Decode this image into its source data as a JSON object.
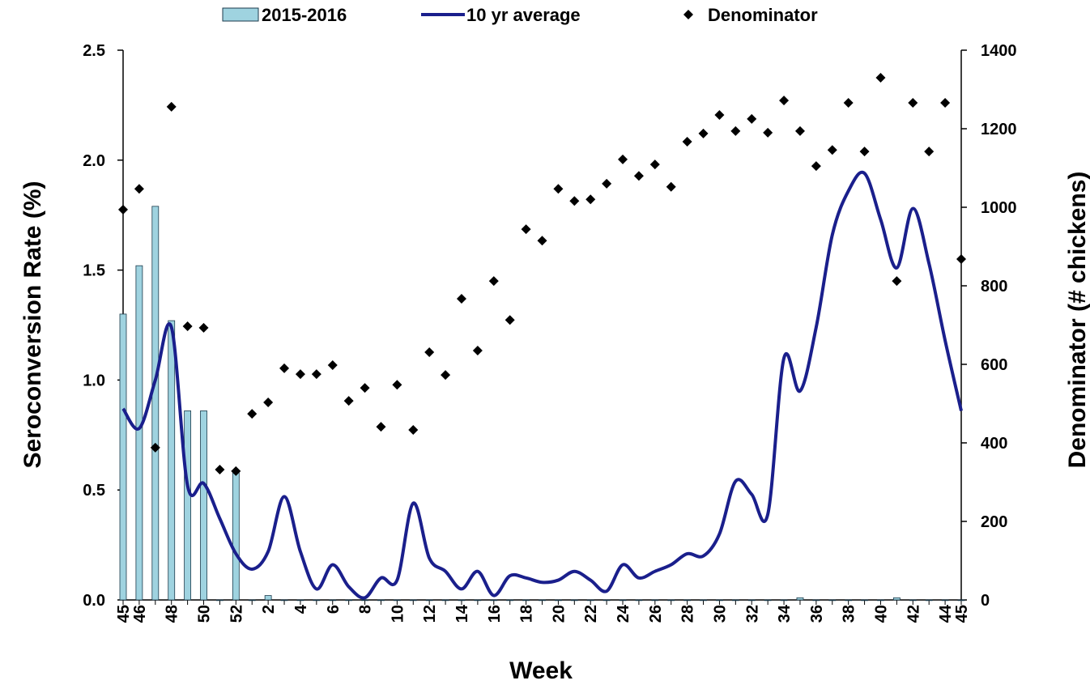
{
  "chart_data": {
    "type": "combo",
    "x_label": "Week",
    "y_label": "Seroconversion Rate (%)",
    "y2_label": "Denominator (# chickens)",
    "categories": [
      "45",
      "46",
      null,
      "48",
      null,
      "50",
      null,
      "52",
      null,
      "2",
      null,
      "4",
      null,
      "6",
      null,
      "8",
      null,
      "10",
      null,
      "12",
      null,
      "14",
      null,
      "16",
      null,
      "18",
      null,
      "20",
      null,
      "22",
      null,
      "24",
      null,
      "26",
      null,
      "28",
      null,
      "30",
      null,
      "32",
      null,
      "34",
      null,
      "36",
      null,
      "38",
      null,
      "40",
      null,
      "42",
      null,
      "44",
      "45"
    ],
    "series": [
      {
        "name": "2015-2016",
        "kind": "bar",
        "color": "#9fd3e0",
        "axis": "y",
        "values": [
          1.3,
          1.52,
          1.79,
          1.27,
          0.86,
          0.86,
          0,
          0.58,
          0,
          0.02,
          0,
          0,
          0,
          0,
          0,
          0,
          0,
          0,
          0,
          0,
          0,
          0,
          0,
          0,
          0,
          0,
          0,
          0,
          0,
          0,
          0,
          0,
          0,
          0,
          0,
          0,
          0,
          0,
          0,
          0,
          0,
          0,
          0.01,
          0,
          0,
          0,
          0,
          0,
          0.01,
          0,
          0,
          0,
          0
        ]
      },
      {
        "name": "10 yr average",
        "kind": "line",
        "color": "#1a1f8c",
        "axis": "y",
        "values": [
          0.87,
          0.78,
          1.0,
          1.24,
          0.52,
          0.53,
          0.37,
          0.21,
          0.14,
          0.22,
          0.47,
          0.22,
          0.05,
          0.16,
          0.06,
          0.01,
          0.1,
          0.09,
          0.44,
          0.19,
          0.13,
          0.05,
          0.13,
          0.02,
          0.11,
          0.1,
          0.08,
          0.09,
          0.13,
          0.09,
          0.04,
          0.16,
          0.1,
          0.13,
          0.16,
          0.21,
          0.2,
          0.3,
          0.54,
          0.48,
          0.39,
          1.1,
          0.95,
          1.24,
          1.66,
          1.86,
          1.94,
          1.73,
          1.51,
          1.78,
          1.53,
          1.18,
          0.86
        ]
      },
      {
        "name": "Denominator",
        "kind": "scatter",
        "color": "#000000",
        "axis": "y2",
        "values": [
          994,
          1047,
          388,
          1256,
          697,
          693,
          332,
          328,
          474,
          503,
          590,
          575,
          575,
          598,
          507,
          540,
          441,
          548,
          433,
          631,
          573,
          767,
          635,
          812,
          713,
          944,
          915,
          1047,
          1016,
          1020,
          1060,
          1122,
          1080,
          1109,
          1052,
          1167,
          1188,
          1235,
          1194,
          1225,
          1190,
          1272,
          1194,
          1105,
          1146,
          1266,
          1142,
          1330,
          812,
          1266,
          1142,
          1266,
          868
        ]
      }
    ],
    "ylim": [
      0,
      2.5
    ],
    "yticks": [
      {
        "value": 0,
        "label": "0.0"
      },
      {
        "value": 0.5,
        "label": "0.5"
      },
      {
        "value": 1,
        "label": "1.0"
      },
      {
        "value": 1.5,
        "label": "1.5"
      },
      {
        "value": 2,
        "label": "2.0"
      },
      {
        "value": 2.5,
        "label": "2.5"
      }
    ],
    "y2lim": [
      0,
      1400
    ],
    "y2ticks": [
      0,
      200,
      400,
      600,
      800,
      1000,
      1200,
      1400
    ]
  }
}
